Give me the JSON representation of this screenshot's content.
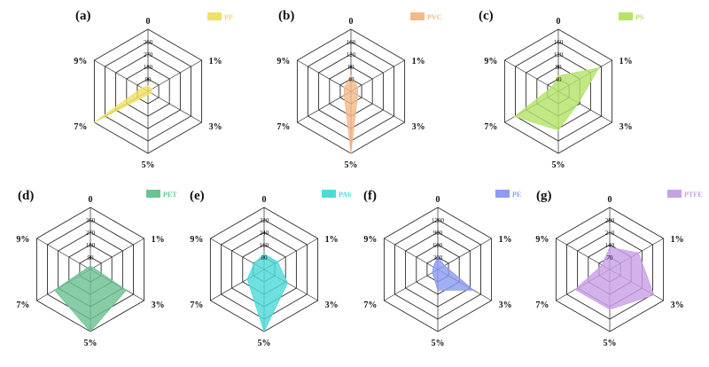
{
  "spokes": [
    "0",
    "1%",
    "3%",
    "5%",
    "7%",
    "9%"
  ],
  "chart_data": [
    {
      "type": "radar",
      "panel": "(a)",
      "categories": [
        "0",
        "1%",
        "3%",
        "5%",
        "7%",
        "9%"
      ],
      "ticks": [
        90,
        180,
        270,
        360
      ],
      "range": [
        0,
        360
      ],
      "series": [
        {
          "name": "PP",
          "values": [
            30,
            25,
            20,
            20,
            360,
            40
          ],
          "color": "#f0e163"
        }
      ]
    },
    {
      "type": "radar",
      "panel": "(b)",
      "categories": [
        "0",
        "1%",
        "3%",
        "5%",
        "7%",
        "9%"
      ],
      "ticks": [
        40,
        80,
        120,
        160
      ],
      "range": [
        0,
        160
      ],
      "series": [
        {
          "name": "PVC",
          "values": [
            40,
            20,
            20,
            160,
            20,
            20
          ],
          "color": "#f4b98a"
        }
      ]
    },
    {
      "type": "radar",
      "panel": "(c)",
      "categories": [
        "0",
        "1%",
        "3%",
        "5%",
        "7%",
        "9%"
      ],
      "ticks": [
        40,
        80,
        120,
        160
      ],
      "range": [
        0,
        160
      ],
      "series": [
        {
          "name": "PS",
          "values": [
            40,
            120,
            60,
            100,
            130,
            20
          ],
          "color": "#b5e36b"
        }
      ]
    },
    {
      "type": "radar",
      "panel": "(d)",
      "categories": [
        "0",
        "1%",
        "3%",
        "5%",
        "7%",
        "9%"
      ],
      "ticks": [
        90,
        180,
        270,
        360
      ],
      "range": [
        0,
        360
      ],
      "series": [
        {
          "name": "PET",
          "values": [
            20,
            20,
            240,
            360,
            240,
            20
          ],
          "color": "#6cc192"
        }
      ]
    },
    {
      "type": "radar",
      "panel": "(e)",
      "categories": [
        "0",
        "1%",
        "3%",
        "5%",
        "7%",
        "9%"
      ],
      "ticks": [
        80,
        160,
        240,
        320
      ],
      "range": [
        0,
        320
      ],
      "series": [
        {
          "name": "PA6",
          "values": [
            80,
            80,
            140,
            320,
            100,
            60
          ],
          "color": "#4fd9d9"
        }
      ]
    },
    {
      "type": "radar",
      "panel": "(f)",
      "categories": [
        "0",
        "1%",
        "3%",
        "5%",
        "7%",
        "9%"
      ],
      "ticks": [
        300,
        600,
        900,
        1200
      ],
      "range": [
        0,
        1200
      ],
      "series": [
        {
          "name": "PE",
          "values": [
            250,
            150,
            800,
            400,
            120,
            100
          ],
          "color": "#8c9cf0"
        }
      ]
    },
    {
      "type": "radar",
      "panel": "(g)",
      "categories": [
        "0",
        "1%",
        "3%",
        "5%",
        "7%",
        "9%"
      ],
      "ticks": [
        70,
        140,
        210,
        280
      ],
      "range": [
        0,
        280
      ],
      "series": [
        {
          "name": "PTFE",
          "values": [
            100,
            150,
            230,
            180,
            180,
            40
          ],
          "color": "#c9a0e6"
        }
      ]
    }
  ]
}
